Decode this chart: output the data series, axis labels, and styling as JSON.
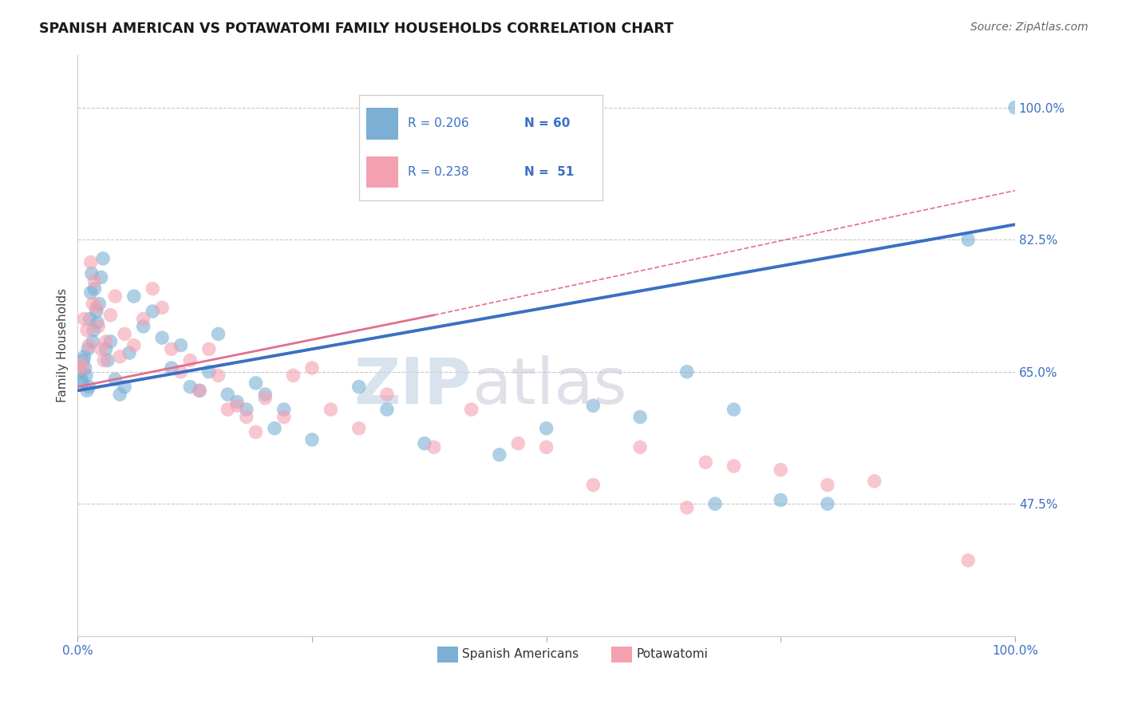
{
  "title": "SPANISH AMERICAN VS POTAWATOMI FAMILY HOUSEHOLDS CORRELATION CHART",
  "source": "Source: ZipAtlas.com",
  "ylabel": "Family Households",
  "xlim": [
    0.0,
    100.0
  ],
  "ylim": [
    30.0,
    107.0
  ],
  "ytick_labels": [
    "47.5%",
    "65.0%",
    "82.5%",
    "100.0%"
  ],
  "ytick_values": [
    47.5,
    65.0,
    82.5,
    100.0
  ],
  "blue_label": "Spanish Americans",
  "pink_label": "Potawatomi",
  "legend_blue_R": "R = 0.206",
  "legend_blue_N": "N = 60",
  "legend_pink_R": "R = 0.238",
  "legend_pink_N": "N =  51",
  "blue_color": "#7BAFD4",
  "pink_color": "#F4A0B0",
  "blue_line_color": "#3B6FC4",
  "pink_line_color": "#E07090",
  "watermark_ZIP": "ZIP",
  "watermark_atlas": "atlas",
  "background_color": "#FFFFFF",
  "grid_color": "#C8C8C8",
  "blue_scatter_x": [
    0.3,
    0.4,
    0.5,
    0.6,
    0.7,
    0.8,
    0.9,
    1.0,
    1.1,
    1.2,
    1.3,
    1.4,
    1.5,
    1.6,
    1.7,
    1.8,
    2.0,
    2.1,
    2.3,
    2.5,
    2.7,
    3.0,
    3.2,
    3.5,
    4.0,
    4.5,
    5.0,
    5.5,
    6.0,
    7.0,
    8.0,
    9.0,
    10.0,
    11.0,
    12.0,
    13.0,
    14.0,
    15.0,
    16.0,
    17.0,
    18.0,
    19.0,
    20.0,
    21.0,
    22.0,
    25.0,
    30.0,
    33.0,
    37.0,
    45.0,
    50.0,
    55.0,
    60.0,
    65.0,
    68.0,
    70.0,
    75.0,
    80.0,
    95.0,
    100.0
  ],
  "blue_scatter_y": [
    65.0,
    64.0,
    63.5,
    66.5,
    67.0,
    65.5,
    64.5,
    62.5,
    68.0,
    63.0,
    72.0,
    75.5,
    78.0,
    69.0,
    70.5,
    76.0,
    73.0,
    71.5,
    74.0,
    77.5,
    80.0,
    68.0,
    66.5,
    69.0,
    64.0,
    62.0,
    63.0,
    67.5,
    75.0,
    71.0,
    73.0,
    69.5,
    65.5,
    68.5,
    63.0,
    62.5,
    65.0,
    70.0,
    62.0,
    61.0,
    60.0,
    63.5,
    62.0,
    57.5,
    60.0,
    56.0,
    63.0,
    60.0,
    55.5,
    54.0,
    57.5,
    60.5,
    59.0,
    65.0,
    47.5,
    60.0,
    48.0,
    47.5,
    82.5,
    100.0
  ],
  "pink_scatter_x": [
    0.3,
    0.5,
    0.7,
    1.0,
    1.2,
    1.4,
    1.6,
    1.8,
    2.0,
    2.2,
    2.5,
    2.8,
    3.0,
    3.5,
    4.0,
    4.5,
    5.0,
    6.0,
    7.0,
    8.0,
    9.0,
    10.0,
    11.0,
    12.0,
    13.0,
    14.0,
    15.0,
    16.0,
    17.0,
    18.0,
    19.0,
    20.0,
    22.0,
    23.0,
    25.0,
    27.0,
    30.0,
    33.0,
    38.0,
    42.0,
    47.0,
    50.0,
    55.0,
    60.0,
    65.0,
    67.0,
    70.0,
    75.0,
    80.0,
    85.0,
    95.0
  ],
  "pink_scatter_y": [
    66.0,
    65.5,
    72.0,
    70.5,
    68.5,
    79.5,
    74.0,
    77.0,
    73.5,
    71.0,
    68.0,
    66.5,
    69.0,
    72.5,
    75.0,
    67.0,
    70.0,
    68.5,
    72.0,
    76.0,
    73.5,
    68.0,
    65.0,
    66.5,
    62.5,
    68.0,
    64.5,
    60.0,
    60.5,
    59.0,
    57.0,
    61.5,
    59.0,
    64.5,
    65.5,
    60.0,
    57.5,
    62.0,
    55.0,
    60.0,
    55.5,
    55.0,
    50.0,
    55.0,
    47.0,
    53.0,
    52.5,
    52.0,
    50.0,
    50.5,
    40.0
  ],
  "blue_line_x0": 0.0,
  "blue_line_x1": 100.0,
  "blue_line_y0": 62.5,
  "blue_line_y1": 84.5,
  "pink_line_solid_x0": 0.0,
  "pink_line_solid_x1": 38.0,
  "pink_line_solid_y0": 63.0,
  "pink_line_solid_y1": 72.5,
  "pink_line_dash_x0": 38.0,
  "pink_line_dash_x1": 100.0,
  "pink_line_dash_y0": 72.5,
  "pink_line_dash_y1": 89.0
}
